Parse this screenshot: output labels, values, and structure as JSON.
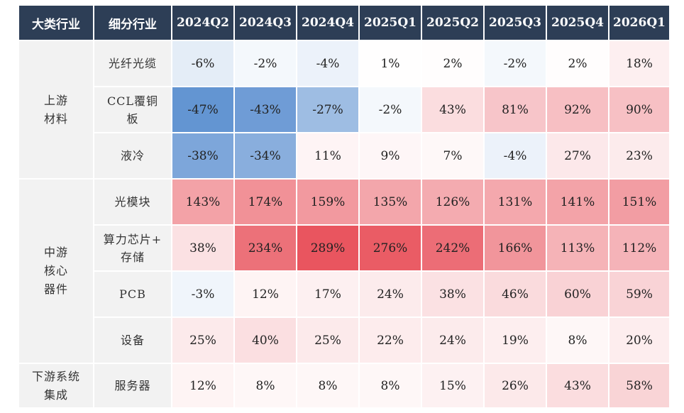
{
  "chart_data": {
    "type": "table",
    "columns": [
      "大类行业",
      "细分行业",
      "2024Q2",
      "2024Q3",
      "2024Q4",
      "2025Q1",
      "2025Q2",
      "2025Q3",
      "2025Q4",
      "2026Q1"
    ],
    "groups": [
      {
        "category": "上游\n材料",
        "rows": [
          {
            "sub": "光纤光缆",
            "values": [
              -6,
              -2,
              -4,
              1,
              2,
              -2,
              2,
              18
            ],
            "labels": [
              "-6%",
              "-2%",
              "-4%",
              "1%",
              "2%",
              "-2%",
              "2%",
              "18%"
            ]
          },
          {
            "sub": "CCL覆铜\n板",
            "values": [
              -47,
              -43,
              -27,
              -2,
              43,
              81,
              92,
              90
            ],
            "labels": [
              "-47%",
              "-43%",
              "-27%",
              "-2%",
              "43%",
              "81%",
              "92%",
              "90%"
            ]
          },
          {
            "sub": "液冷",
            "values": [
              -38,
              -34,
              11,
              9,
              7,
              -4,
              27,
              23
            ],
            "labels": [
              "-38%",
              "-34%",
              "11%",
              "9%",
              "7%",
              "-4%",
              "27%",
              "23%"
            ]
          }
        ]
      },
      {
        "category": "中游\n核心\n器件",
        "rows": [
          {
            "sub": "光模块",
            "values": [
              143,
              174,
              159,
              135,
              126,
              131,
              141,
              151
            ],
            "labels": [
              "143%",
              "174%",
              "159%",
              "135%",
              "126%",
              "131%",
              "141%",
              "151%"
            ]
          },
          {
            "sub": "算力芯片+\n存储",
            "values": [
              38,
              234,
              289,
              276,
              242,
              166,
              113,
              112
            ],
            "labels": [
              "38%",
              "234%",
              "289%",
              "276%",
              "242%",
              "166%",
              "113%",
              "112%"
            ]
          },
          {
            "sub": "PCB",
            "values": [
              -3,
              12,
              17,
              24,
              38,
              46,
              60,
              59
            ],
            "labels": [
              "-3%",
              "12%",
              "17%",
              "24%",
              "38%",
              "46%",
              "60%",
              "59%"
            ]
          },
          {
            "sub": "设备",
            "values": [
              25,
              40,
              25,
              22,
              24,
              19,
              8,
              20
            ],
            "labels": [
              "25%",
              "40%",
              "25%",
              "22%",
              "24%",
              "19%",
              "8%",
              "20%"
            ]
          }
        ]
      },
      {
        "category": "下游系统\n集成",
        "rows": [
          {
            "sub": "服务器",
            "values": [
              12,
              8,
              8,
              8,
              15,
              26,
              43,
              58
            ],
            "labels": [
              "12%",
              "8%",
              "8%",
              "8%",
              "15%",
              "26%",
              "43%",
              "58%"
            ]
          }
        ]
      }
    ],
    "colors": {
      "negative": "#5b8fd0",
      "positive": "#e8505a",
      "neutral": "#ffffff",
      "header": "#2d3e56"
    }
  }
}
